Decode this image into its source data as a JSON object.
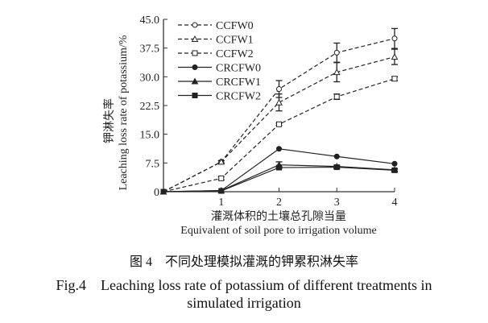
{
  "chart_data": {
    "type": "line",
    "x": [
      0,
      1,
      2,
      3,
      4
    ],
    "xticks": [
      "1",
      "2",
      "3",
      "4"
    ],
    "yticks": [
      "0",
      "7.5",
      "15.0",
      "22.5",
      "30.0",
      "37.5",
      "45.0"
    ],
    "ylim": [
      0,
      45
    ],
    "xlim": [
      0,
      4
    ],
    "ylabel_cn": "钾淋失率",
    "ylabel": "Leaching loss rate of potassium/%",
    "xlabel_cn": "灌溉体积的土壤总孔隙当量",
    "xlabel": "Equivalent of soil pore to irrigation volume",
    "legend_position": "top-left",
    "series": [
      {
        "name": "CCFW0",
        "style": "dashed",
        "marker": "circle-open",
        "values": [
          0,
          7.8,
          26.8,
          36.3,
          40.0
        ],
        "errors": [
          0,
          0.3,
          2.2,
          2.5,
          2.6
        ]
      },
      {
        "name": "CCFW1",
        "style": "dashed",
        "marker": "triangle-open",
        "values": [
          0,
          7.8,
          23.3,
          31.2,
          35.2
        ],
        "errors": [
          0,
          0.3,
          2.2,
          2.5,
          2.0
        ]
      },
      {
        "name": "CCFW2",
        "style": "dashed",
        "marker": "square-open",
        "values": [
          0,
          3.5,
          17.6,
          24.8,
          29.5
        ],
        "errors": [
          0,
          0.4,
          0.3,
          0.7,
          0.5
        ]
      },
      {
        "name": "CRCFW0",
        "style": "solid",
        "marker": "circle-filled",
        "values": [
          0,
          0.3,
          11.2,
          9.2,
          7.3
        ],
        "errors": [
          0,
          0,
          0.2,
          0.2,
          0.2
        ]
      },
      {
        "name": "CRCFW1",
        "style": "solid",
        "marker": "triangle-filled",
        "values": [
          0,
          0.3,
          7.0,
          6.6,
          5.7
        ],
        "errors": [
          0,
          0,
          0.8,
          0.3,
          0.3
        ]
      },
      {
        "name": "CRCFW2",
        "style": "solid",
        "marker": "square-filled",
        "values": [
          0,
          0.2,
          6.3,
          6.4,
          5.6
        ],
        "errors": [
          0,
          0,
          0.3,
          0.3,
          0.3
        ]
      }
    ]
  },
  "caption": {
    "cn": "图 4　不同处理模拟灌溉的钾累积淋失率",
    "en_line1": "Fig.4　Leaching loss rate of potassium of different treatments in",
    "en_line2": "simulated irrigation"
  }
}
